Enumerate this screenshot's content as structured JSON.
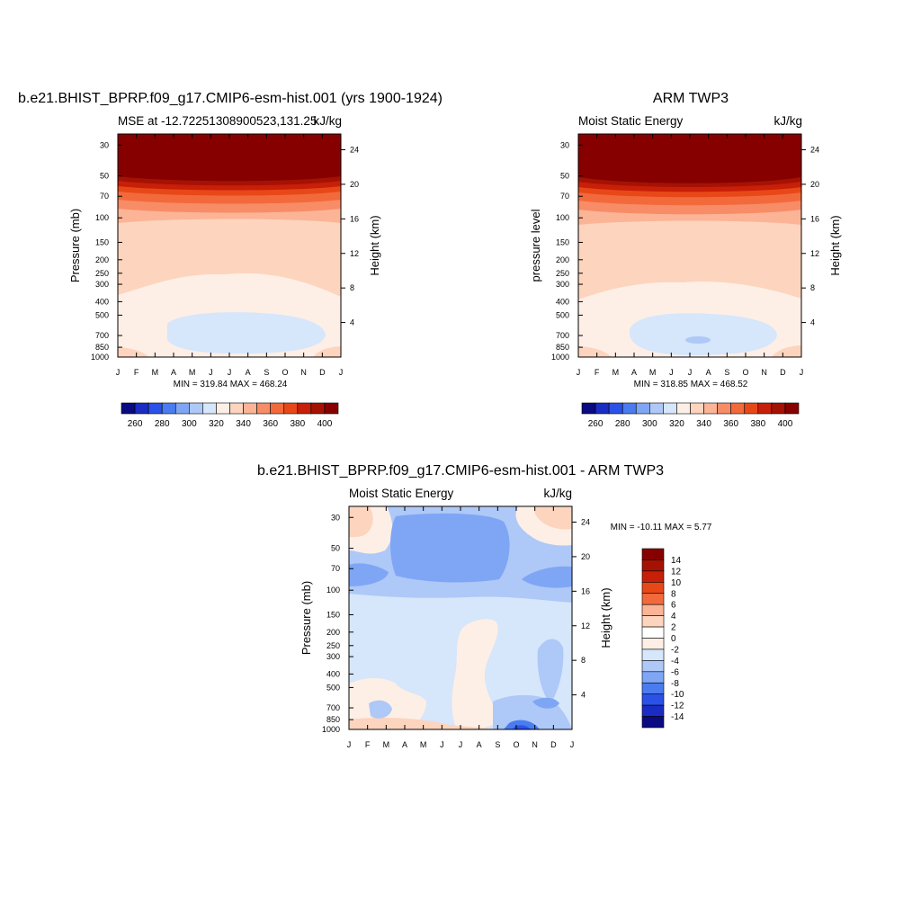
{
  "chart_data": [
    {
      "id": "model",
      "type": "contour",
      "title": "b.e21.BHIST_BPRP.f09_g17.CMIP6-esm-hist.001 (yrs 1900-1924)",
      "left_string": "MSE at -12.72251308900523,131.25",
      "right_string": "kJ/kg",
      "ylabel": "Pressure (mb)",
      "y2label": "Height (km)",
      "x_ticks": [
        "J",
        "F",
        "M",
        "A",
        "M",
        "J",
        "J",
        "A",
        "S",
        "O",
        "N",
        "D",
        "J"
      ],
      "y_ticks": [
        "30",
        "50",
        "70",
        "100",
        "150",
        "200",
        "250",
        "300",
        "400",
        "500",
        "700",
        "850",
        "1000"
      ],
      "y2_ticks": [
        "24",
        "20",
        "16",
        "12",
        "8",
        "4"
      ],
      "stats": "MIN = 319.84 MAX = 468.24",
      "colorbar_labels": [
        "260",
        "280",
        "300",
        "320",
        "340",
        "360",
        "380",
        "400"
      ]
    },
    {
      "id": "obs",
      "type": "contour",
      "title": "ARM TWP3",
      "left_string": "Moist Static Energy",
      "right_string": "kJ/kg",
      "ylabel": "pressure level",
      "y2label": "Height (km)",
      "x_ticks": [
        "J",
        "F",
        "M",
        "A",
        "M",
        "J",
        "J",
        "A",
        "S",
        "O",
        "N",
        "D",
        "J"
      ],
      "y_ticks": [
        "30",
        "50",
        "70",
        "100",
        "150",
        "200",
        "250",
        "300",
        "400",
        "500",
        "700",
        "850",
        "1000"
      ],
      "y2_ticks": [
        "24",
        "20",
        "16",
        "12",
        "8",
        "4"
      ],
      "stats": "MIN = 318.85 MAX = 468.52",
      "colorbar_labels": [
        "260",
        "280",
        "300",
        "320",
        "340",
        "360",
        "380",
        "400"
      ]
    },
    {
      "id": "diff",
      "type": "contour",
      "title": "b.e21.BHIST_BPRP.f09_g17.CMIP6-esm-hist.001 - ARM TWP3",
      "left_string": "Moist Static Energy",
      "right_string": "kJ/kg",
      "ylabel": "Pressure (mb)",
      "y2label": "Height (km)",
      "x_ticks": [
        "J",
        "F",
        "M",
        "A",
        "M",
        "J",
        "J",
        "A",
        "S",
        "O",
        "N",
        "D",
        "J"
      ],
      "y_ticks": [
        "30",
        "50",
        "70",
        "100",
        "150",
        "200",
        "250",
        "300",
        "400",
        "500",
        "700",
        "850",
        "1000"
      ],
      "y2_ticks": [
        "24",
        "20",
        "16",
        "12",
        "8",
        "4"
      ],
      "stats": "MIN = -10.11 MAX =   5.77",
      "colorbar_labels": [
        "14",
        "12",
        "10",
        "8",
        "6",
        "4",
        "2",
        "0",
        "-2",
        "-4",
        "-6",
        "-8",
        "-10",
        "-12",
        "-14"
      ]
    }
  ],
  "colors": {
    "mse_palette": [
      "#0a0a82",
      "#1a2cc4",
      "#2a52e8",
      "#4a7cf0",
      "#7fa6f5",
      "#aec8f7",
      "#d6e6fb",
      "#fdefe6",
      "#fdd4bd",
      "#fbb496",
      "#f88c66",
      "#f26a3c",
      "#e84818",
      "#c81f08",
      "#a51204",
      "#870000"
    ],
    "diff_palette": [
      "#870000",
      "#a51204",
      "#c81f08",
      "#e84818",
      "#f26a3c",
      "#fbb496",
      "#fdd4bd",
      "#fdefe6",
      "#d6e6fb",
      "#aec8f7",
      "#7fa6f5",
      "#4a7cf0",
      "#2a52e8",
      "#1a2cc4",
      "#0a0a82"
    ]
  }
}
